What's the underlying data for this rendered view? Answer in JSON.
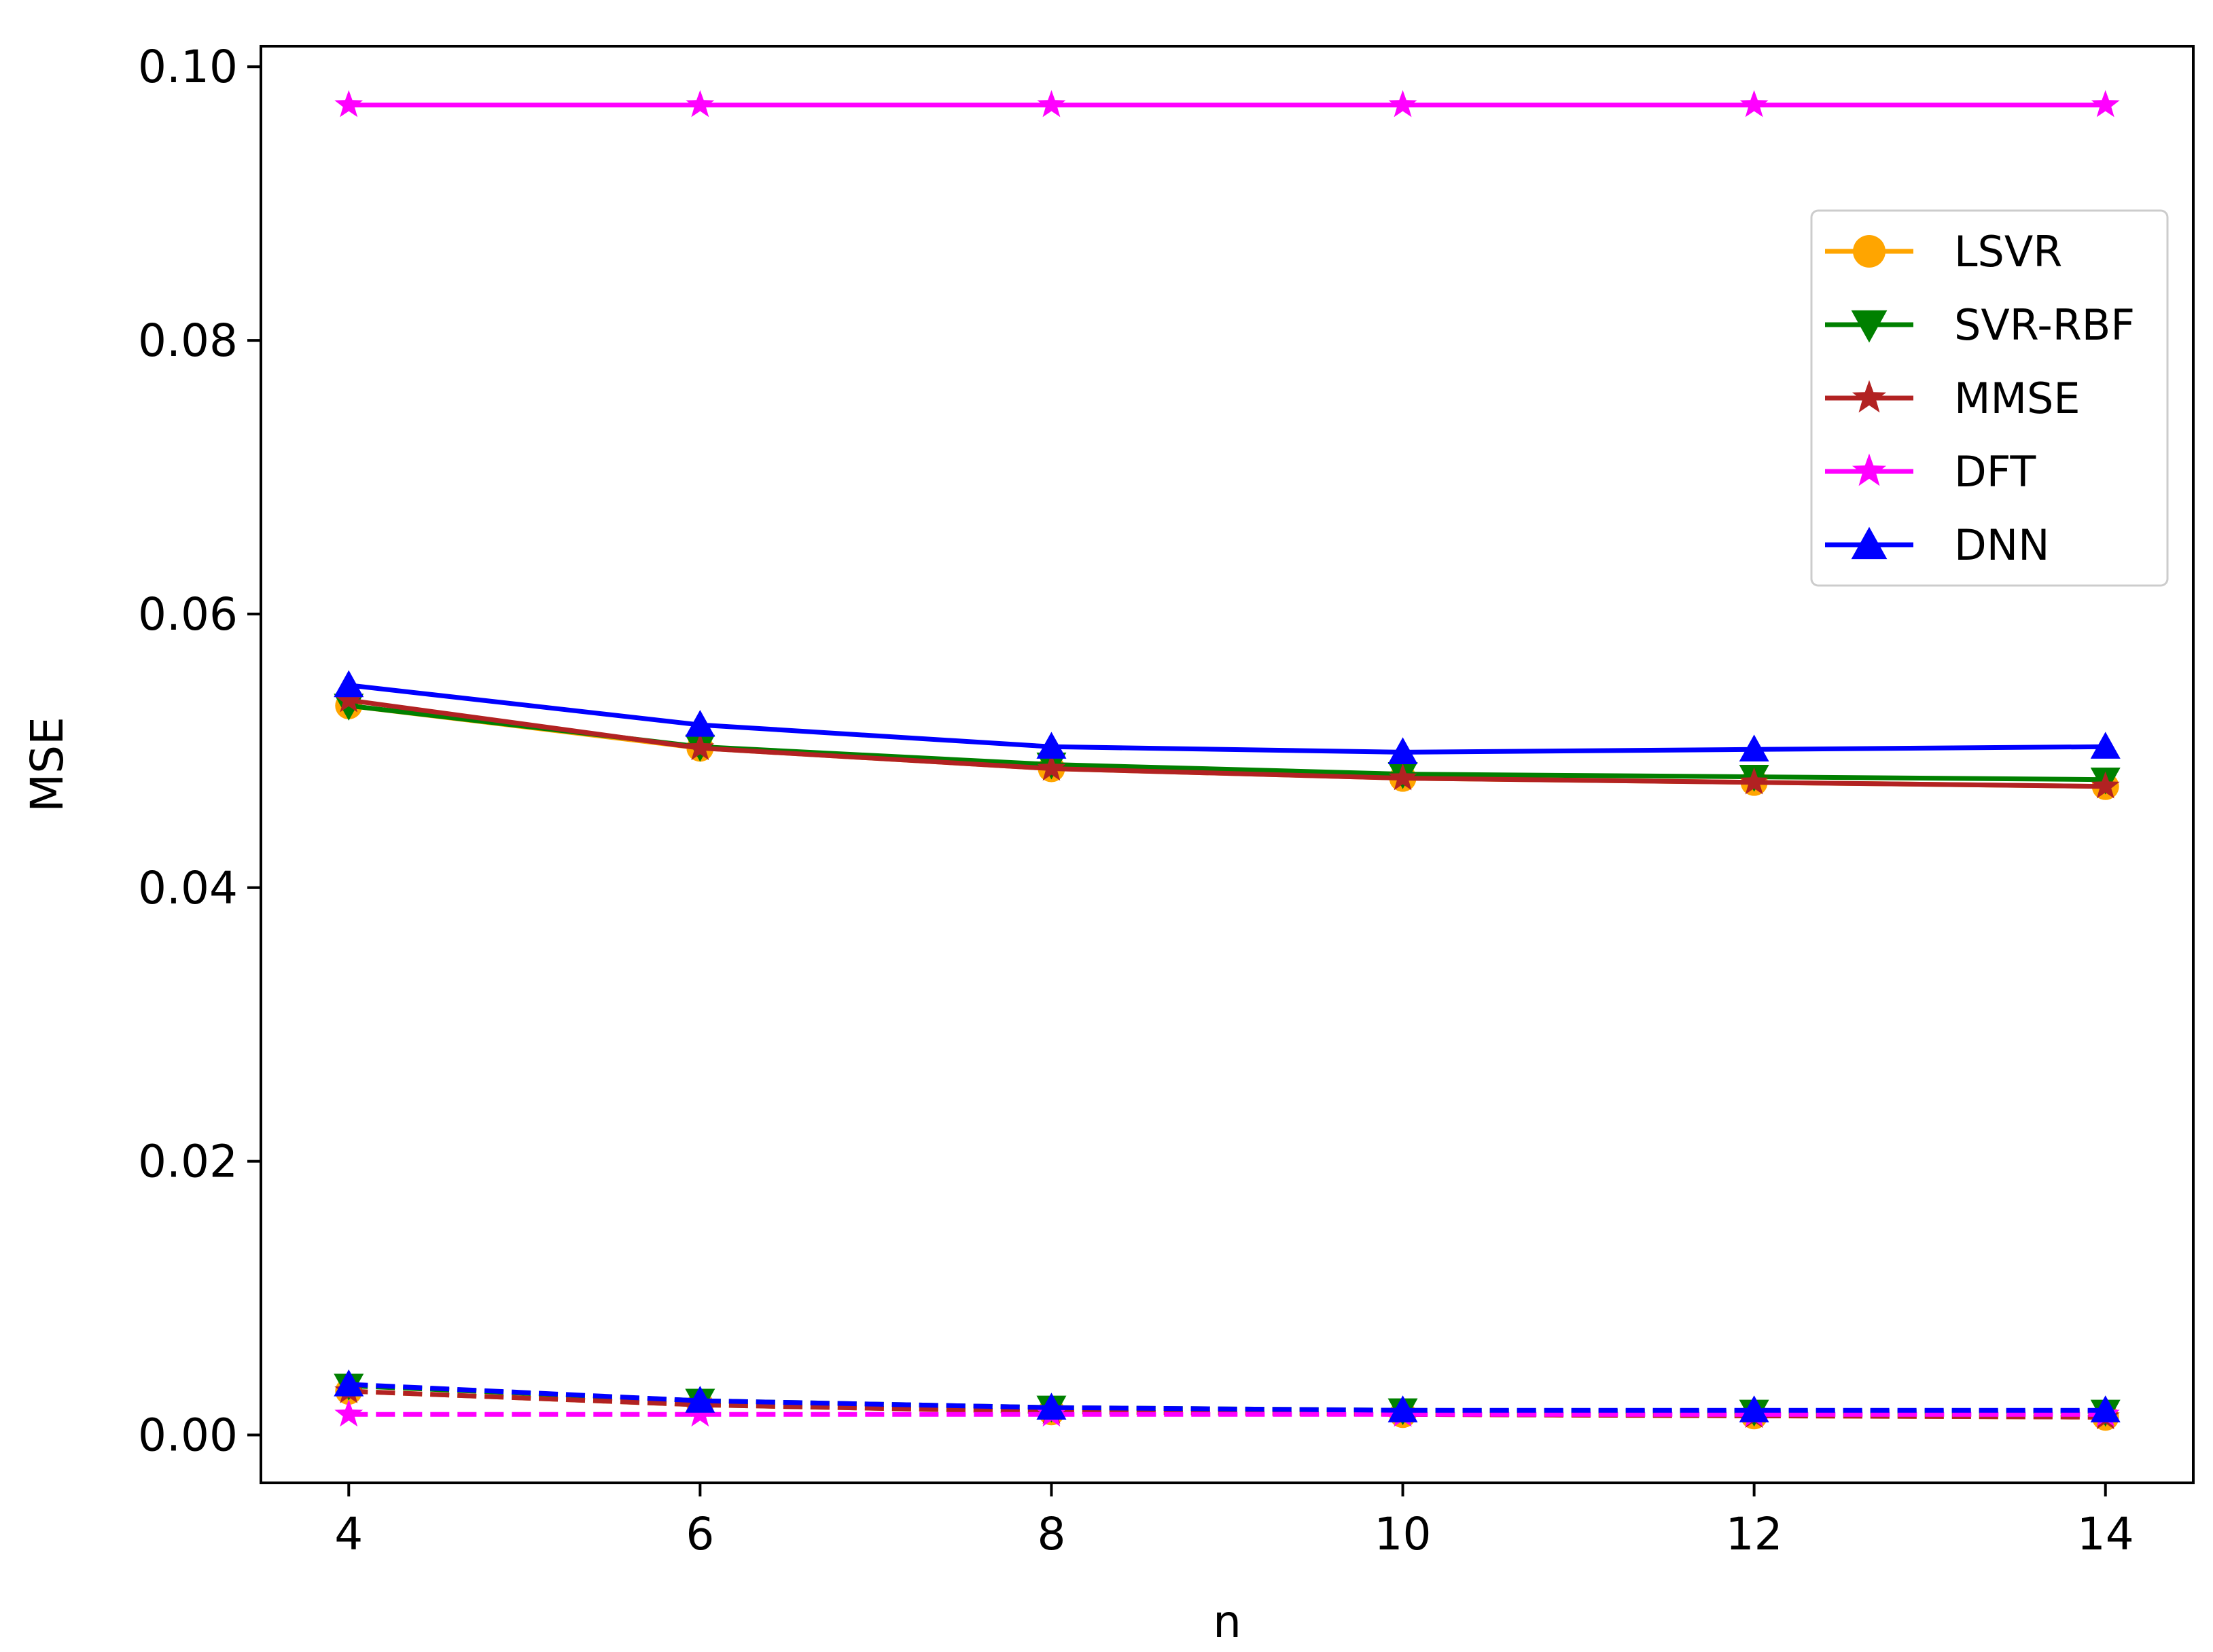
{
  "chart_data": {
    "type": "line",
    "title": "",
    "xlabel": "n",
    "ylabel": "MSE",
    "x": [
      4,
      6,
      8,
      10,
      12,
      14
    ],
    "xticks": [
      "4",
      "6",
      "8",
      "10",
      "12",
      "14"
    ],
    "yticks": [
      "0.00",
      "0.02",
      "0.04",
      "0.06",
      "0.08",
      "0.10"
    ],
    "xlim": [
      3.5,
      14.5
    ],
    "ylim": [
      -0.0035,
      0.1015
    ],
    "grid": false,
    "legend_position": "upper-right",
    "series": [
      {
        "name": "LSVR",
        "color": "#FFA500",
        "marker": "circle",
        "linestyle": "solid",
        "values": [
          0.0533,
          0.0502,
          0.0487,
          0.048,
          0.0477,
          0.0474
        ]
      },
      {
        "name": "SVR-RBF",
        "color": "#008000",
        "marker": "triangle-down",
        "linestyle": "solid",
        "values": [
          0.0533,
          0.0503,
          0.049,
          0.0483,
          0.0481,
          0.0479
        ]
      },
      {
        "name": "MMSE",
        "color": "#B22222",
        "marker": "star",
        "linestyle": "solid",
        "values": [
          0.0537,
          0.0502,
          0.0487,
          0.048,
          0.0477,
          0.0474
        ]
      },
      {
        "name": "DFT",
        "color": "#FF00FF",
        "marker": "star",
        "linestyle": "solid",
        "values": [
          0.0972,
          0.0972,
          0.0972,
          0.0972,
          0.0972,
          0.0972
        ]
      },
      {
        "name": "DNN",
        "color": "#0000FF",
        "marker": "triangle-up",
        "linestyle": "solid",
        "values": [
          0.0548,
          0.0519,
          0.0503,
          0.0499,
          0.0501,
          0.0503
        ]
      },
      {
        "color": "#FFA500",
        "marker": "circle",
        "linestyle": "dashed",
        "values": [
          0.0032,
          0.0022,
          0.0017,
          0.0015,
          0.0014,
          0.0013
        ]
      },
      {
        "color": "#008000",
        "marker": "triangle-down",
        "linestyle": "dashed",
        "values": [
          0.0036,
          0.0025,
          0.002,
          0.0018,
          0.0017,
          0.0017
        ]
      },
      {
        "color": "#B22222",
        "marker": "star",
        "linestyle": "dashed",
        "values": [
          0.0032,
          0.0022,
          0.0017,
          0.0015,
          0.0014,
          0.0013
        ]
      },
      {
        "color": "#FF00FF",
        "marker": "star",
        "linestyle": "dashed",
        "values": [
          0.0015,
          0.0015,
          0.0015,
          0.0015,
          0.0015,
          0.0015
        ]
      },
      {
        "color": "#0000FF",
        "marker": "triangle-up",
        "linestyle": "dashed",
        "values": [
          0.0037,
          0.0025,
          0.002,
          0.0018,
          0.0018,
          0.0018
        ]
      }
    ]
  }
}
